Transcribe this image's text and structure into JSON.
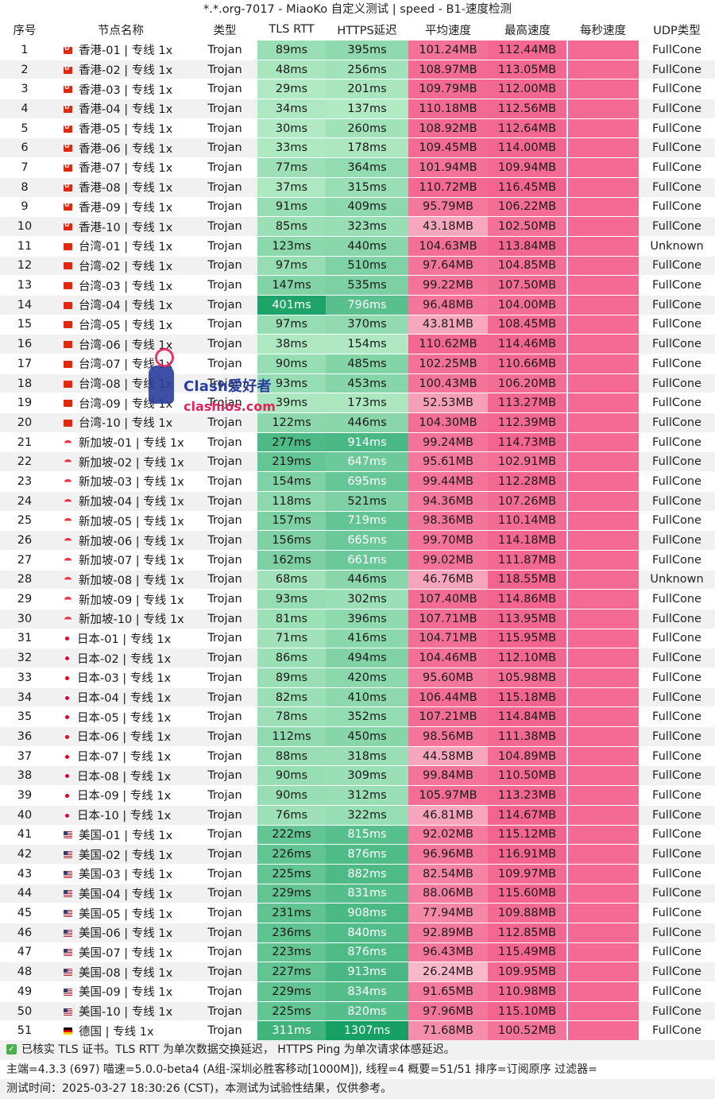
{
  "window": {
    "title": "*.*.org-7017 - MiaoKo 自定义测试 | speed - B1-速度检测"
  },
  "table": {
    "headers": [
      "序号",
      "节点名称",
      "类型",
      "TLS RTT",
      "HTTPS延迟",
      "平均速度",
      "最高速度",
      "每秒速度",
      "UDP类型"
    ],
    "rows": [
      {
        "idx": "1",
        "flag": "hk",
        "name": "香港-01 | 专线 1x",
        "type": "Trojan",
        "tls": "89ms",
        "https": "395ms",
        "avg": "101.24MB",
        "max": "112.44MB",
        "udp": "FullCone"
      },
      {
        "idx": "2",
        "flag": "hk",
        "name": "香港-02 | 专线 1x",
        "type": "Trojan",
        "tls": "48ms",
        "https": "256ms",
        "avg": "108.97MB",
        "max": "113.05MB",
        "udp": "FullCone"
      },
      {
        "idx": "3",
        "flag": "hk",
        "name": "香港-03 | 专线 1x",
        "type": "Trojan",
        "tls": "29ms",
        "https": "201ms",
        "avg": "109.79MB",
        "max": "112.00MB",
        "udp": "FullCone"
      },
      {
        "idx": "4",
        "flag": "hk",
        "name": "香港-04 | 专线 1x",
        "type": "Trojan",
        "tls": "34ms",
        "https": "137ms",
        "avg": "110.18MB",
        "max": "112.56MB",
        "udp": "FullCone"
      },
      {
        "idx": "5",
        "flag": "hk",
        "name": "香港-05 | 专线 1x",
        "type": "Trojan",
        "tls": "30ms",
        "https": "260ms",
        "avg": "108.92MB",
        "max": "112.64MB",
        "udp": "FullCone"
      },
      {
        "idx": "6",
        "flag": "hk",
        "name": "香港-06 | 专线 1x",
        "type": "Trojan",
        "tls": "33ms",
        "https": "178ms",
        "avg": "109.45MB",
        "max": "114.00MB",
        "udp": "FullCone"
      },
      {
        "idx": "7",
        "flag": "hk",
        "name": "香港-07 | 专线 1x",
        "type": "Trojan",
        "tls": "77ms",
        "https": "364ms",
        "avg": "101.94MB",
        "max": "109.94MB",
        "udp": "FullCone"
      },
      {
        "idx": "8",
        "flag": "hk",
        "name": "香港-08 | 专线 1x",
        "type": "Trojan",
        "tls": "37ms",
        "https": "315ms",
        "avg": "110.72MB",
        "max": "116.45MB",
        "udp": "FullCone"
      },
      {
        "idx": "9",
        "flag": "hk",
        "name": "香港-09 | 专线 1x",
        "type": "Trojan",
        "tls": "91ms",
        "https": "409ms",
        "avg": "95.79MB",
        "max": "106.22MB",
        "udp": "FullCone"
      },
      {
        "idx": "10",
        "flag": "hk",
        "name": "香港-10 | 专线 1x",
        "type": "Trojan",
        "tls": "85ms",
        "https": "323ms",
        "avg": "43.18MB",
        "max": "102.50MB",
        "udp": "FullCone"
      },
      {
        "idx": "11",
        "flag": "tw",
        "name": "台湾-01 | 专线 1x",
        "type": "Trojan",
        "tls": "123ms",
        "https": "440ms",
        "avg": "104.63MB",
        "max": "113.84MB",
        "udp": "Unknown"
      },
      {
        "idx": "12",
        "flag": "tw",
        "name": "台湾-02 | 专线 1x",
        "type": "Trojan",
        "tls": "97ms",
        "https": "510ms",
        "avg": "97.64MB",
        "max": "104.85MB",
        "udp": "FullCone"
      },
      {
        "idx": "13",
        "flag": "tw",
        "name": "台湾-03 | 专线 1x",
        "type": "Trojan",
        "tls": "147ms",
        "https": "535ms",
        "avg": "99.22MB",
        "max": "107.50MB",
        "udp": "FullCone"
      },
      {
        "idx": "14",
        "flag": "tw",
        "name": "台湾-04 | 专线 1x",
        "type": "Trojan",
        "tls": "401ms",
        "https": "796ms",
        "avg": "96.48MB",
        "max": "104.00MB",
        "udp": "FullCone"
      },
      {
        "idx": "15",
        "flag": "tw",
        "name": "台湾-05 | 专线 1x",
        "type": "Trojan",
        "tls": "97ms",
        "https": "370ms",
        "avg": "43.81MB",
        "max": "108.45MB",
        "udp": "FullCone"
      },
      {
        "idx": "16",
        "flag": "tw",
        "name": "台湾-06 | 专线 1x",
        "type": "Trojan",
        "tls": "38ms",
        "https": "154ms",
        "avg": "110.62MB",
        "max": "114.46MB",
        "udp": "FullCone"
      },
      {
        "idx": "17",
        "flag": "tw",
        "name": "台湾-07 | 专线 1x",
        "type": "Trojan",
        "tls": "90ms",
        "https": "485ms",
        "avg": "102.25MB",
        "max": "110.66MB",
        "udp": "FullCone"
      },
      {
        "idx": "18",
        "flag": "tw",
        "name": "台湾-08 | 专线 1x",
        "type": "Trojan",
        "tls": "93ms",
        "https": "453ms",
        "avg": "100.43MB",
        "max": "106.20MB",
        "udp": "FullCone"
      },
      {
        "idx": "19",
        "flag": "tw",
        "name": "台湾-09 | 专线 1x",
        "type": "Trojan",
        "tls": "39ms",
        "https": "173ms",
        "avg": "52.53MB",
        "max": "113.27MB",
        "udp": "FullCone"
      },
      {
        "idx": "20",
        "flag": "tw",
        "name": "台湾-10 | 专线 1x",
        "type": "Trojan",
        "tls": "122ms",
        "https": "446ms",
        "avg": "104.30MB",
        "max": "112.39MB",
        "udp": "FullCone"
      },
      {
        "idx": "21",
        "flag": "sg",
        "name": "新加坡-01 | 专线 1x",
        "type": "Trojan",
        "tls": "277ms",
        "https": "914ms",
        "avg": "99.24MB",
        "max": "114.73MB",
        "udp": "FullCone"
      },
      {
        "idx": "22",
        "flag": "sg",
        "name": "新加坡-02 | 专线 1x",
        "type": "Trojan",
        "tls": "219ms",
        "https": "647ms",
        "avg": "95.61MB",
        "max": "102.91MB",
        "udp": "FullCone"
      },
      {
        "idx": "23",
        "flag": "sg",
        "name": "新加坡-03 | 专线 1x",
        "type": "Trojan",
        "tls": "154ms",
        "https": "695ms",
        "avg": "99.44MB",
        "max": "112.28MB",
        "udp": "FullCone"
      },
      {
        "idx": "24",
        "flag": "sg",
        "name": "新加坡-04 | 专线 1x",
        "type": "Trojan",
        "tls": "118ms",
        "https": "521ms",
        "avg": "94.36MB",
        "max": "107.26MB",
        "udp": "FullCone"
      },
      {
        "idx": "25",
        "flag": "sg",
        "name": "新加坡-05 | 专线 1x",
        "type": "Trojan",
        "tls": "157ms",
        "https": "719ms",
        "avg": "98.36MB",
        "max": "110.14MB",
        "udp": "FullCone"
      },
      {
        "idx": "26",
        "flag": "sg",
        "name": "新加坡-06 | 专线 1x",
        "type": "Trojan",
        "tls": "156ms",
        "https": "665ms",
        "avg": "99.70MB",
        "max": "114.18MB",
        "udp": "FullCone"
      },
      {
        "idx": "27",
        "flag": "sg",
        "name": "新加坡-07 | 专线 1x",
        "type": "Trojan",
        "tls": "162ms",
        "https": "661ms",
        "avg": "99.02MB",
        "max": "111.87MB",
        "udp": "FullCone"
      },
      {
        "idx": "28",
        "flag": "sg",
        "name": "新加坡-08 | 专线 1x",
        "type": "Trojan",
        "tls": "68ms",
        "https": "446ms",
        "avg": "46.76MB",
        "max": "118.55MB",
        "udp": "Unknown"
      },
      {
        "idx": "29",
        "flag": "sg",
        "name": "新加坡-09 | 专线 1x",
        "type": "Trojan",
        "tls": "93ms",
        "https": "302ms",
        "avg": "107.40MB",
        "max": "114.86MB",
        "udp": "FullCone"
      },
      {
        "idx": "30",
        "flag": "sg",
        "name": "新加坡-10 | 专线 1x",
        "type": "Trojan",
        "tls": "81ms",
        "https": "396ms",
        "avg": "107.71MB",
        "max": "113.95MB",
        "udp": "FullCone"
      },
      {
        "idx": "31",
        "flag": "jp",
        "name": "日本-01 | 专线 1x",
        "type": "Trojan",
        "tls": "71ms",
        "https": "416ms",
        "avg": "104.71MB",
        "max": "115.95MB",
        "udp": "FullCone"
      },
      {
        "idx": "32",
        "flag": "jp",
        "name": "日本-02 | 专线 1x",
        "type": "Trojan",
        "tls": "86ms",
        "https": "494ms",
        "avg": "104.46MB",
        "max": "112.10MB",
        "udp": "FullCone"
      },
      {
        "idx": "33",
        "flag": "jp",
        "name": "日本-03 | 专线 1x",
        "type": "Trojan",
        "tls": "89ms",
        "https": "420ms",
        "avg": "95.60MB",
        "max": "105.98MB",
        "udp": "FullCone"
      },
      {
        "idx": "34",
        "flag": "jp",
        "name": "日本-04 | 专线 1x",
        "type": "Trojan",
        "tls": "82ms",
        "https": "410ms",
        "avg": "106.44MB",
        "max": "115.18MB",
        "udp": "FullCone"
      },
      {
        "idx": "35",
        "flag": "jp",
        "name": "日本-05 | 专线 1x",
        "type": "Trojan",
        "tls": "78ms",
        "https": "352ms",
        "avg": "107.21MB",
        "max": "114.84MB",
        "udp": "FullCone"
      },
      {
        "idx": "36",
        "flag": "jp",
        "name": "日本-06 | 专线 1x",
        "type": "Trojan",
        "tls": "112ms",
        "https": "450ms",
        "avg": "98.56MB",
        "max": "111.38MB",
        "udp": "FullCone"
      },
      {
        "idx": "37",
        "flag": "jp",
        "name": "日本-07 | 专线 1x",
        "type": "Trojan",
        "tls": "88ms",
        "https": "318ms",
        "avg": "44.58MB",
        "max": "104.89MB",
        "udp": "FullCone"
      },
      {
        "idx": "38",
        "flag": "jp",
        "name": "日本-08 | 专线 1x",
        "type": "Trojan",
        "tls": "90ms",
        "https": "309ms",
        "avg": "99.84MB",
        "max": "110.50MB",
        "udp": "FullCone"
      },
      {
        "idx": "39",
        "flag": "jp",
        "name": "日本-09 | 专线 1x",
        "type": "Trojan",
        "tls": "90ms",
        "https": "312ms",
        "avg": "105.97MB",
        "max": "113.23MB",
        "udp": "FullCone"
      },
      {
        "idx": "40",
        "flag": "jp",
        "name": "日本-10 | 专线 1x",
        "type": "Trojan",
        "tls": "76ms",
        "https": "322ms",
        "avg": "46.81MB",
        "max": "114.67MB",
        "udp": "FullCone"
      },
      {
        "idx": "41",
        "flag": "us",
        "name": "美国-01 | 专线 1x",
        "type": "Trojan",
        "tls": "222ms",
        "https": "815ms",
        "avg": "92.02MB",
        "max": "115.12MB",
        "udp": "FullCone"
      },
      {
        "idx": "42",
        "flag": "us",
        "name": "美国-02 | 专线 1x",
        "type": "Trojan",
        "tls": "226ms",
        "https": "876ms",
        "avg": "96.96MB",
        "max": "116.91MB",
        "udp": "FullCone"
      },
      {
        "idx": "43",
        "flag": "us",
        "name": "美国-03 | 专线 1x",
        "type": "Trojan",
        "tls": "225ms",
        "https": "882ms",
        "avg": "82.54MB",
        "max": "109.97MB",
        "udp": "FullCone"
      },
      {
        "idx": "44",
        "flag": "us",
        "name": "美国-04 | 专线 1x",
        "type": "Trojan",
        "tls": "229ms",
        "https": "831ms",
        "avg": "88.06MB",
        "max": "115.60MB",
        "udp": "FullCone"
      },
      {
        "idx": "45",
        "flag": "us",
        "name": "美国-05 | 专线 1x",
        "type": "Trojan",
        "tls": "231ms",
        "https": "908ms",
        "avg": "77.94MB",
        "max": "109.88MB",
        "udp": "FullCone"
      },
      {
        "idx": "46",
        "flag": "us",
        "name": "美国-06 | 专线 1x",
        "type": "Trojan",
        "tls": "236ms",
        "https": "840ms",
        "avg": "92.89MB",
        "max": "112.85MB",
        "udp": "FullCone"
      },
      {
        "idx": "47",
        "flag": "us",
        "name": "美国-07 | 专线 1x",
        "type": "Trojan",
        "tls": "223ms",
        "https": "876ms",
        "avg": "96.43MB",
        "max": "115.49MB",
        "udp": "FullCone"
      },
      {
        "idx": "48",
        "flag": "us",
        "name": "美国-08 | 专线 1x",
        "type": "Trojan",
        "tls": "227ms",
        "https": "913ms",
        "avg": "26.24MB",
        "max": "109.95MB",
        "udp": "FullCone"
      },
      {
        "idx": "49",
        "flag": "us",
        "name": "美国-09 | 专线 1x",
        "type": "Trojan",
        "tls": "229ms",
        "https": "834ms",
        "avg": "91.65MB",
        "max": "110.98MB",
        "udp": "FullCone"
      },
      {
        "idx": "50",
        "flag": "us",
        "name": "美国-10 | 专线 1x",
        "type": "Trojan",
        "tls": "225ms",
        "https": "820ms",
        "avg": "97.96MB",
        "max": "115.10MB",
        "udp": "FullCone"
      },
      {
        "idx": "51",
        "flag": "de",
        "name": "德国 | 专线 1x",
        "type": "Trojan",
        "tls": "311ms",
        "https": "1307ms",
        "avg": "71.68MB",
        "max": "100.52MB",
        "udp": "FullCone"
      }
    ]
  },
  "footer": {
    "line1": "已核实 TLS 证书。TLS RTT 为单次数据交换延迟， HTTPS Ping 为单次请求体感延迟。",
    "line2": "主端=4.3.3 (697) 喵速=5.0.0-beta4 (A组-深圳必胜客移动[1000M]), 线程=4 概要=51/51 排序=订阅原序 过滤器=",
    "line3": "测试时间：2025-03-27 18:30:26 (CST)，本测试为试验性结果，仅供参考。"
  },
  "watermark": {
    "line1": "Clash爱好者",
    "line2": "clashios.com"
  },
  "colors": {
    "speed_pink": "#f3658f",
    "redacted_pink": "#f56a94",
    "row_alt": "#f1f1f1",
    "check_green": "#4caf50"
  }
}
